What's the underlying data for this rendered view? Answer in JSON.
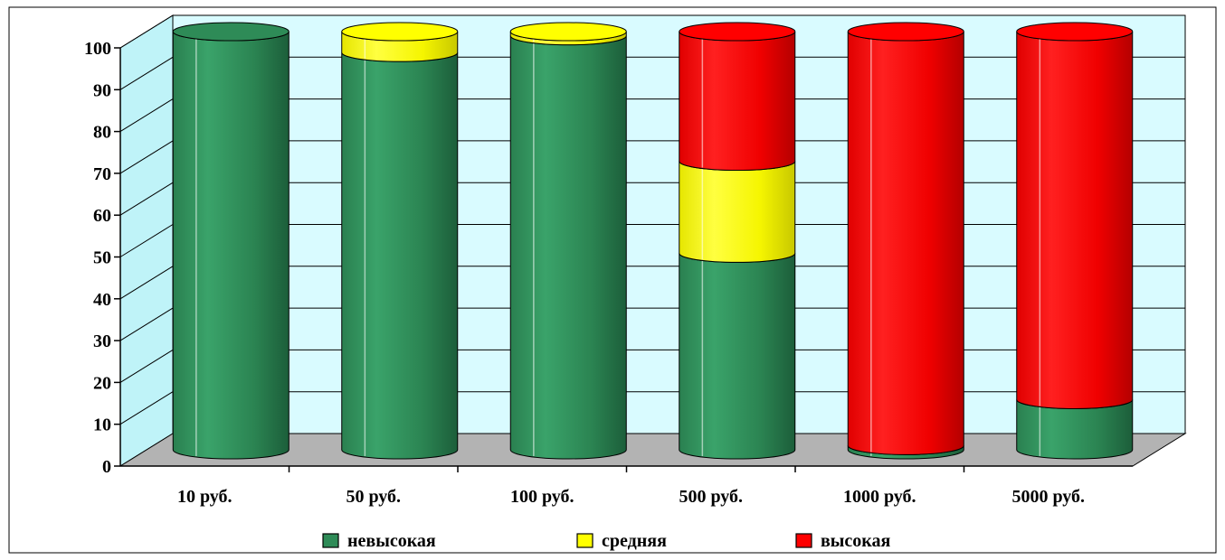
{
  "colors": {
    "background": "#ffffff",
    "plot_back_wall": "#d9fbff",
    "plot_side_wall": "#bff3f8",
    "floor": "#b3b3b3",
    "gridline": "#000000",
    "frame": "#000000",
    "low": "#2e8b57",
    "medium": "#ffff00",
    "high": "#ff0000"
  },
  "chart_data": {
    "type": "bar",
    "stacked": true,
    "style": "3d-cylinder",
    "title": "",
    "xlabel": "",
    "ylabel": "",
    "ylim": [
      0,
      100
    ],
    "yticks": [
      "0",
      "10",
      "20",
      "30",
      "40",
      "50",
      "60",
      "70",
      "80",
      "90",
      "100"
    ],
    "grid": true,
    "legend_position": "bottom",
    "categories": [
      "10 руб.",
      "50 руб.",
      "100 руб.",
      "500 руб.",
      "1000 руб.",
      "5000 руб."
    ],
    "series": [
      {
        "name": "невысокая",
        "color": "#2e8b57",
        "values": [
          100,
          95,
          99,
          47,
          1,
          12
        ]
      },
      {
        "name": "средняя",
        "color": "#ffff00",
        "values": [
          0,
          5,
          1,
          22,
          0,
          0
        ]
      },
      {
        "name": "высокая",
        "color": "#ff0000",
        "values": [
          0,
          0,
          0,
          31,
          99,
          88
        ]
      }
    ]
  }
}
